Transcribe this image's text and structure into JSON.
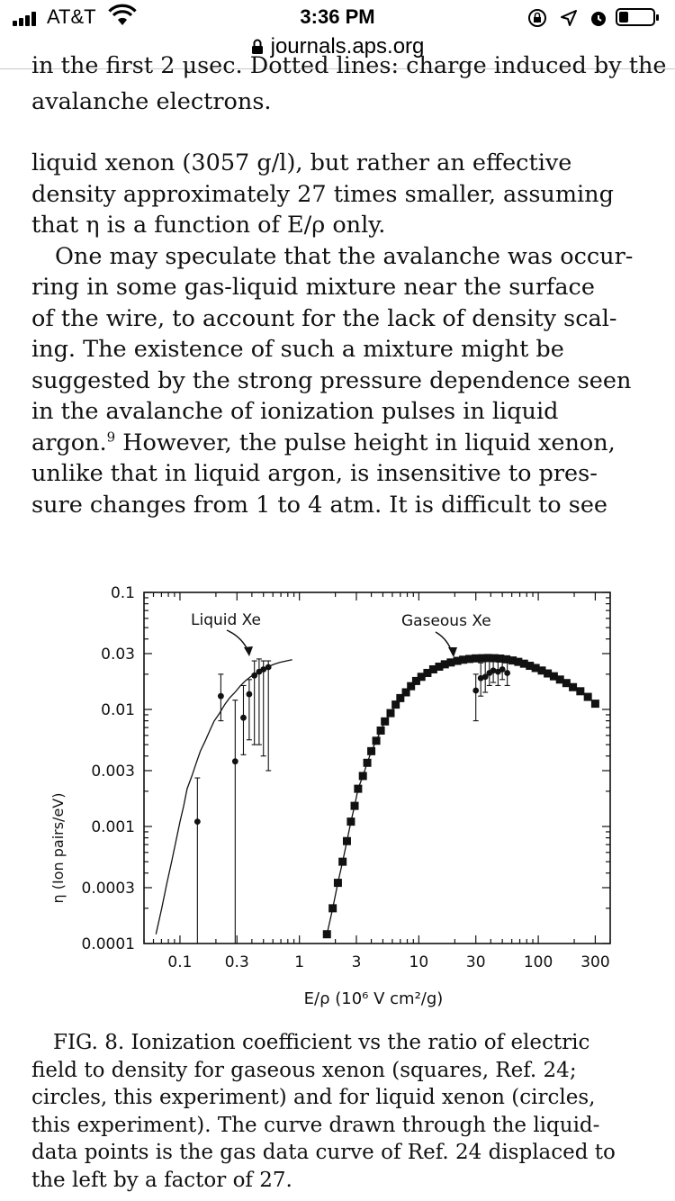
{
  "status_bar": {
    "carrier": "AT&T",
    "time": "3:36 PM",
    "url": "journals.aps.org"
  },
  "document": {
    "clipped_line": "in the first 2 μsec. Dotted lines: charge induced by the",
    "previous_caption_end": "avalanche electrons.",
    "body_lines": [
      "liquid xenon (3057 g/l), but rather an effective",
      "density approximately 27 times smaller, assuming",
      "that η is a function of E/ρ only."
    ],
    "paragraph_lines": [
      "One may speculate that the avalanche was occur-",
      "ring in some gas-liquid mixture near the surface",
      "of the wire, to account for the lack of density scal-",
      "ing. The existence of such a mixture might be",
      "suggested by the strong pressure dependence seen",
      "in the avalanche of ionization pulses in liquid"
    ],
    "argon_line": {
      "before": "argon.",
      "sup": "9",
      "after": " However, the pulse height in liquid xenon,"
    },
    "closing_lines": [
      "unlike that in liquid argon, is insensitive to pres-",
      "sure changes from 1 to 4 atm. It is difficult to see"
    ]
  },
  "figure": {
    "labels": {
      "liquid": "Liquid Xe",
      "gaseous": "Gaseous Xe"
    }
  },
  "chart_data": {
    "type": "scatter",
    "title": "",
    "xlabel": "E/ρ (10⁶ V cm²/g)",
    "ylabel": "η (Ion pairs/eV)",
    "x_scale": "log",
    "y_scale": "log",
    "xlim": [
      0.05,
      400
    ],
    "ylim": [
      0.0001,
      0.1
    ],
    "x_ticks": [
      "0.1",
      "0.3",
      "1",
      "3",
      "10",
      "30",
      "100",
      "300"
    ],
    "y_ticks": [
      "0.1",
      "0.03",
      "0.01",
      "0.003",
      "0.001",
      "0.0003",
      "0.0001"
    ],
    "grid": false,
    "annotations": [
      "Liquid Xe",
      "Gaseous Xe"
    ],
    "series": [
      {
        "marker": "square",
        "x": [
          1.7,
          1.9,
          2.1,
          2.3,
          2.5,
          2.7,
          2.9,
          3.1,
          3.4,
          3.7,
          4.0,
          4.4,
          4.8,
          5.2,
          5.8,
          6.4,
          7.0,
          7.8,
          8.6,
          9.5,
          10.5,
          11.8,
          13.2,
          14.8,
          16.5,
          18.5,
          21,
          23.5,
          26.5,
          30,
          34,
          38,
          43,
          48,
          54,
          61,
          68,
          76,
          85,
          95,
          107,
          120,
          135,
          152,
          172,
          195,
          225,
          260,
          300
        ],
        "y": [
          0.00012,
          0.0002,
          0.00033,
          0.0005,
          0.00075,
          0.0011,
          0.0015,
          0.0021,
          0.0027,
          0.0035,
          0.0044,
          0.0054,
          0.0066,
          0.0079,
          0.0093,
          0.011,
          0.0125,
          0.014,
          0.0158,
          0.0175,
          0.019,
          0.0205,
          0.022,
          0.0232,
          0.0243,
          0.0252,
          0.026,
          0.0266,
          0.027,
          0.0273,
          0.0274,
          0.0275,
          0.0274,
          0.0272,
          0.0268,
          0.0262,
          0.0255,
          0.0246,
          0.0236,
          0.0226,
          0.0215,
          0.0203,
          0.0192,
          0.018,
          0.0168,
          0.0155,
          0.0143,
          0.0128,
          0.0112
        ]
      },
      {
        "marker": "circle",
        "x": [
          0.14,
          0.22,
          0.29,
          0.34,
          0.38,
          0.42,
          0.46,
          0.5,
          0.55
        ],
        "y": [
          0.0011,
          0.013,
          0.0036,
          0.0085,
          0.0135,
          0.0195,
          0.021,
          0.022,
          0.023
        ],
        "err_low": [
          0.0001,
          0.008,
          0.0001,
          0.0041,
          0.0055,
          0.005,
          0.005,
          0.004,
          0.003
        ],
        "err_high": [
          0.0026,
          0.02,
          0.012,
          0.016,
          0.018,
          0.026,
          0.027,
          0.026,
          0.026
        ]
      },
      {
        "marker": "circle",
        "x": [
          30,
          33,
          36,
          39,
          42,
          46,
          50,
          55
        ],
        "y": [
          0.0145,
          0.0185,
          0.019,
          0.0205,
          0.0215,
          0.021,
          0.022,
          0.0205
        ],
        "err_low": [
          0.008,
          0.013,
          0.014,
          0.016,
          0.017,
          0.016,
          0.018,
          0.016
        ],
        "err_high": [
          0.02,
          0.025,
          0.026,
          0.027,
          0.027,
          0.027,
          0.028,
          0.026
        ]
      }
    ],
    "curve_note_factor": 27
  },
  "caption": {
    "lines": [
      "FIG. 8. Ionization coefficient vs the ratio of electric",
      "field to density for gaseous xenon (squares, Ref. 24;",
      "circles, this experiment) and for liquid xenon (circles,",
      "this experiment). The curve drawn through the liquid-",
      "data points is the gas data curve of Ref. 24 displaced to",
      "the left by a factor of 27."
    ]
  }
}
